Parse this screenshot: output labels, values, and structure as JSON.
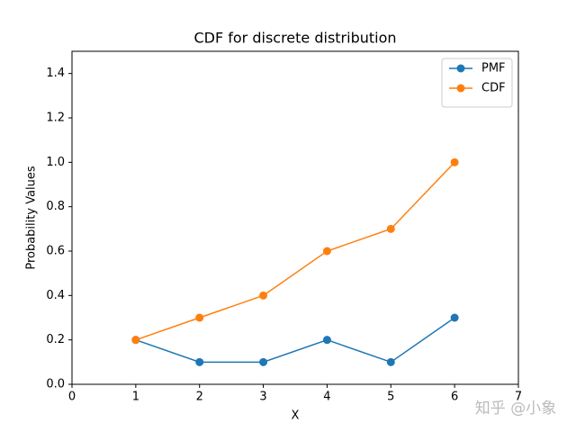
{
  "chart_data": {
    "type": "line",
    "title": "CDF for discrete distribution",
    "xlabel": "X",
    "ylabel": "Probability Values",
    "x": [
      1,
      2,
      3,
      4,
      5,
      6
    ],
    "series": [
      {
        "name": "PMF",
        "color": "#1f77b4",
        "values": [
          0.2,
          0.1,
          0.1,
          0.2,
          0.1,
          0.3
        ]
      },
      {
        "name": "CDF",
        "color": "#ff7f0e",
        "values": [
          0.2,
          0.3,
          0.4,
          0.6,
          0.7,
          1.0
        ]
      }
    ],
    "xlim": [
      0,
      7
    ],
    "xticks": [
      0,
      1,
      2,
      3,
      4,
      5,
      6,
      7
    ],
    "ylim": [
      0,
      1.5
    ],
    "yticks": [
      {
        "value": 0,
        "label": "0.0"
      },
      0.2,
      0.4,
      0.6,
      0.8,
      {
        "value": 1,
        "label": "1.0"
      },
      1.2,
      1.4
    ],
    "legend": "upper right",
    "grid": false,
    "watermark": "知乎 @小象"
  }
}
